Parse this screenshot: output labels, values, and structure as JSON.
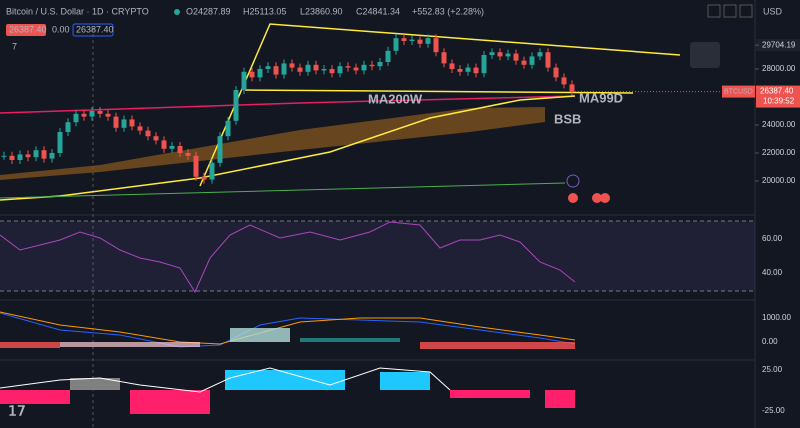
{
  "header": {
    "symbol": "Bitcoin / U.S. Dollar · 1D · CRYPTO",
    "open": "O24287.89",
    "high": "H25113.05",
    "low": "L23860.90",
    "close": "C24841.34",
    "change": "+552.83 (+2.28%)",
    "currency": "USD"
  },
  "toolbar": {
    "bid": "26387.40",
    "spread": "0.00",
    "ask": "26387.40",
    "indicators": "7"
  },
  "price_axis": {
    "ticks": [
      {
        "value": 29704.19,
        "label": "29704.19"
      },
      {
        "value": 28000,
        "label": "28000.00"
      },
      {
        "value": 24000,
        "label": "24000.00"
      },
      {
        "value": 22000,
        "label": "22000.00"
      },
      {
        "value": 20000,
        "label": "20000.00"
      }
    ],
    "tag": {
      "value": 26387.4,
      "label": "26387.40",
      "symbol": "BTCUSD",
      "timer": "10:39:52"
    }
  },
  "price": {
    "closes": [
      21800,
      21500,
      21900,
      21700,
      22200,
      21600,
      22000,
      23500,
      24200,
      24800,
      24600,
      25000,
      24800,
      24600,
      23800,
      24400,
      23900,
      23600,
      23200,
      22900,
      22300,
      22500,
      22000,
      21800,
      20300,
      20100,
      21300,
      23200,
      24300,
      26500,
      27800,
      27400,
      28000,
      28200,
      27600,
      28400,
      28100,
      27800,
      28300,
      27900,
      28000,
      27700,
      28200,
      28100,
      27900,
      28300,
      28200,
      28500,
      29300,
      30200,
      30000,
      30100,
      29800,
      30200,
      29200,
      28400,
      28000,
      27800,
      28100,
      27700,
      29000,
      29200,
      28900,
      29100,
      28600,
      28300,
      28900,
      29200,
      28100,
      27400,
      26900,
      26387.4
    ]
  },
  "annotations": {
    "ma200w": "MA200W",
    "ma99d": "MA99D",
    "bsb": "BSB"
  },
  "rsi_axis": [
    "60.00",
    "40.00"
  ],
  "macd_axis": [
    "1000.00",
    "0.00"
  ],
  "momentum_axis": [
    "25.00",
    "-25.00"
  ]
}
